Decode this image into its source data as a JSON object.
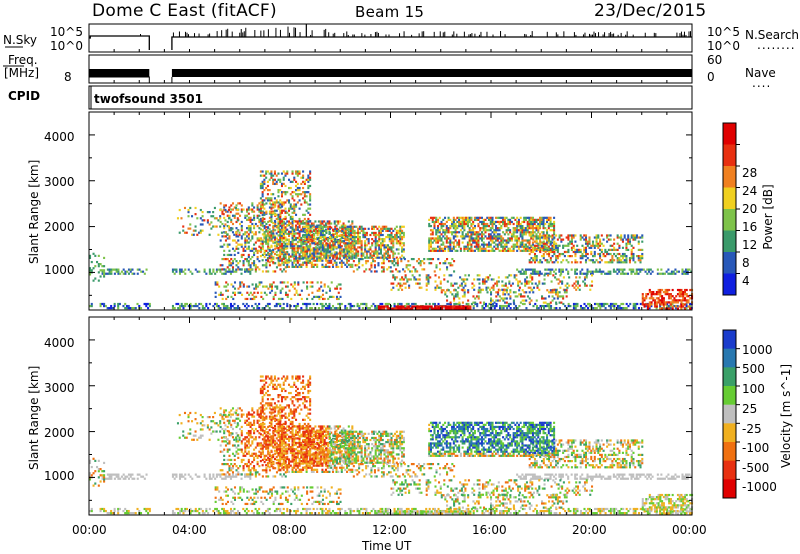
{
  "header": {
    "station": "Dome C East (fitACF)",
    "beam": "Beam 15",
    "date": "23/Dec/2015"
  },
  "left_labels": {
    "nsky": "N.Sky",
    "freq": "Freq.",
    "freq_unit": "[MHz]",
    "cpid": "CPID"
  },
  "right_labels": {
    "nsearch": "N.Search",
    "nsearch_line": "........",
    "nave": "Nave",
    "nave_line": "...."
  },
  "strip_ticks": {
    "noise_top": "10^5",
    "noise_bottom": "10^0",
    "freq_top_left": "",
    "freq_bottom_left": "8",
    "nave_top": "60",
    "nave_bottom": "0"
  },
  "cpid_text": "twofsound 3501",
  "x_axis": {
    "label": "Time UT",
    "ticks": [
      "00:00",
      "04:00",
      "08:00",
      "12:00",
      "16:00",
      "20:00",
      "00:00"
    ]
  },
  "y_axis": {
    "label": "Slant Range [km]",
    "ticks": [
      "1000",
      "2000",
      "3000",
      "4000"
    ]
  },
  "power_scale": {
    "label": "Power [dB]",
    "ticks": [
      "4",
      "8",
      "12",
      "16",
      "20",
      "24",
      "28"
    ],
    "colors": [
      "#1020e0",
      "#2858b8",
      "#3a9a6a",
      "#7ec34a",
      "#f0d020",
      "#f08020",
      "#e83010",
      "#e00000"
    ]
  },
  "velocity_scale": {
    "label": "Velocity [m s^-1]",
    "ticks": [
      "1000",
      "500",
      "100",
      "25",
      "-25",
      "-100",
      "-500",
      "-1000"
    ],
    "colors": [
      "#1a3ccc",
      "#2878b0",
      "#3aa068",
      "#66cc33",
      "#bfbfbf",
      "#f0b020",
      "#f07010",
      "#e83010",
      "#e00000"
    ]
  },
  "chart_data": {
    "type": "heatmap",
    "x_range_hours": [
      0,
      24
    ],
    "y_range_km": [
      180,
      4500
    ],
    "data_gap_hours": [
      2.4,
      3.3
    ],
    "panels": [
      "power",
      "velocity"
    ]
  }
}
